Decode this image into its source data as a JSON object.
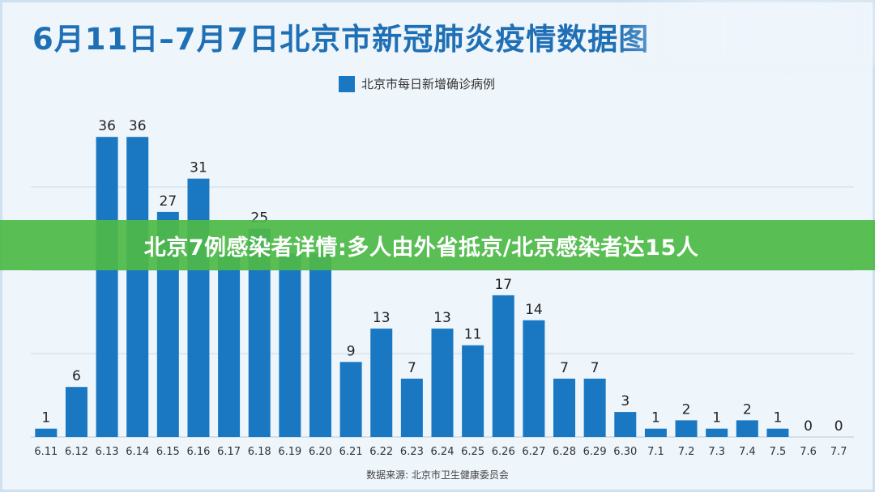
{
  "header": {
    "title": "6月11日–7月7日北京市新冠肺炎疫情数据图"
  },
  "banner": {
    "text": "北京7例感染者详情:多人由外省抵京/北京感染者达15人"
  },
  "source": "数据来源: 北京市卫生健康委员会",
  "colors": {
    "bar": "#1a78c2",
    "title": "#1f6fb5",
    "banner": "#4eb947",
    "background": "#eef5fb",
    "grid": "#cddbe6"
  },
  "chart_data": {
    "type": "bar",
    "title": "6月11日–7月7日北京市新冠肺炎疫情数据图",
    "xlabel": "",
    "ylabel": "",
    "legend": "top-center",
    "grid": true,
    "ylim": [
      0,
      40
    ],
    "categories": [
      "6.11",
      "6.12",
      "6.13",
      "6.14",
      "6.15",
      "6.16",
      "6.17",
      "6.18",
      "6.19",
      "6.20",
      "6.21",
      "6.22",
      "6.23",
      "6.24",
      "6.25",
      "6.26",
      "6.27",
      "6.28",
      "6.29",
      "6.30",
      "7.1",
      "7.2",
      "7.3",
      "7.4",
      "7.5",
      "7.6",
      "7.7"
    ],
    "series": [
      {
        "name": "北京市每日新增确诊病例",
        "values": [
          1,
          6,
          36,
          36,
          27,
          31,
          22,
          25,
          22,
          22,
          9,
          13,
          7,
          13,
          11,
          17,
          14,
          7,
          7,
          3,
          1,
          2,
          1,
          2,
          1,
          0,
          0
        ],
        "labels": [
          "1",
          "6",
          "36",
          "36",
          "27",
          "31",
          "",
          "25",
          "",
          "",
          "9",
          "13",
          "7",
          "13",
          "11",
          "17",
          "14",
          "7",
          "7",
          "3",
          "1",
          "2",
          "1",
          "2",
          "1",
          "0",
          "0"
        ]
      }
    ]
  }
}
